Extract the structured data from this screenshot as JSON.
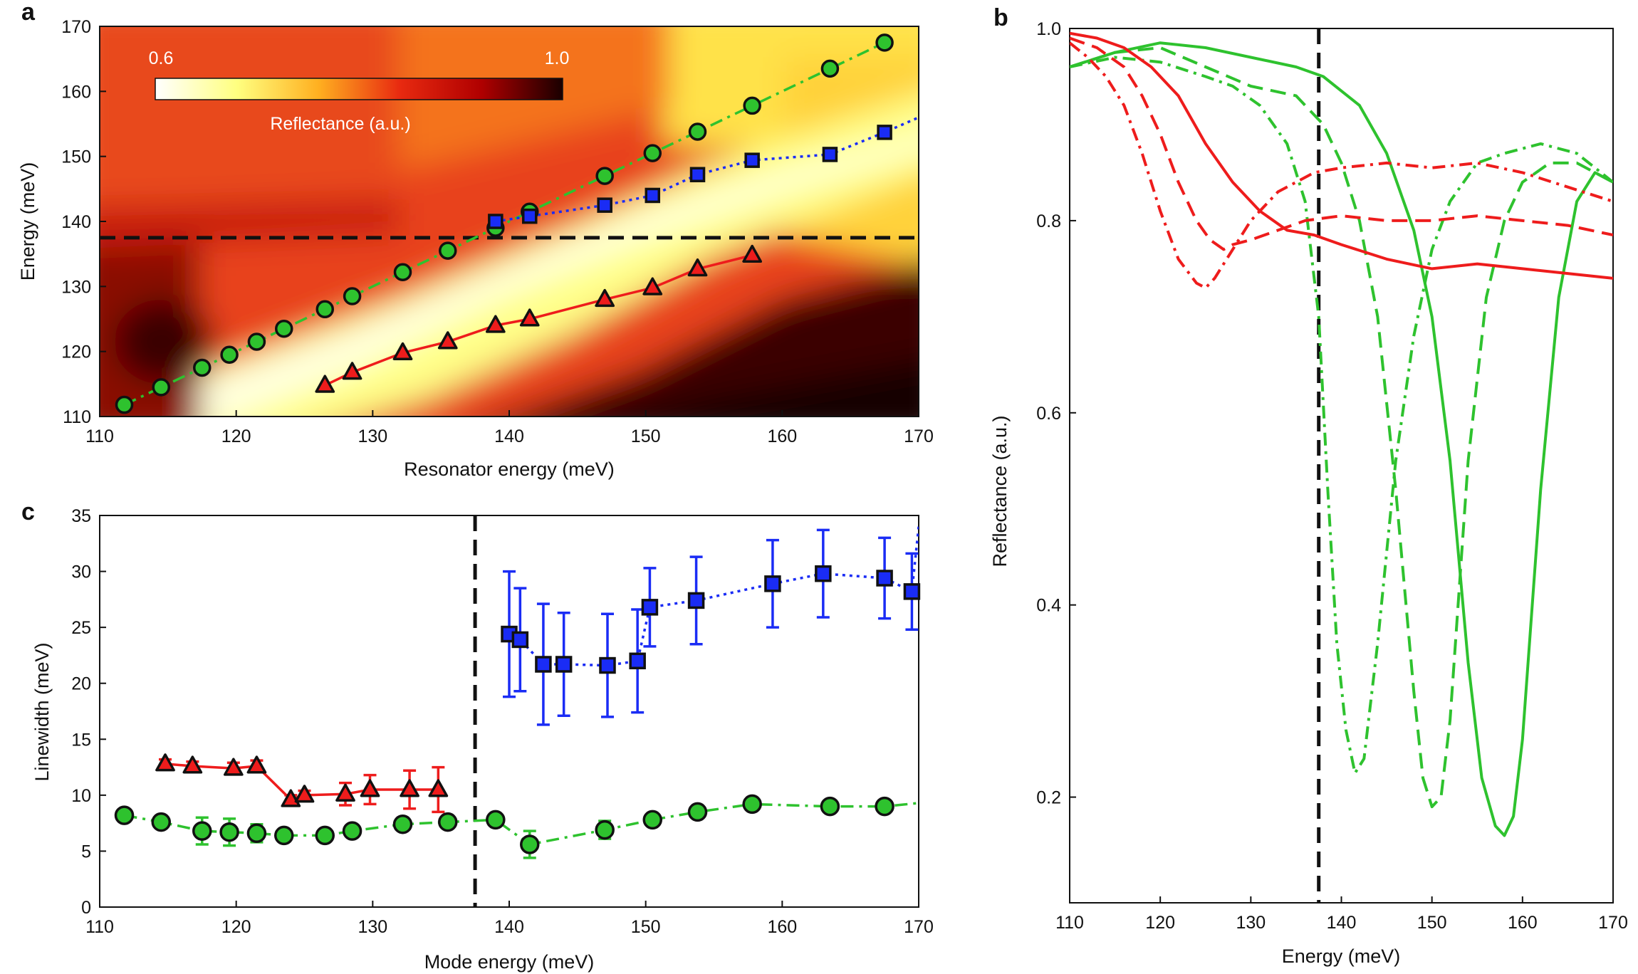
{
  "figure": {
    "panel_letters": [
      "a",
      "b",
      "c"
    ]
  },
  "chart_data": [
    {
      "panel": "a",
      "type": "heatmap",
      "xlabel": "Resonator energy (meV)",
      "ylabel": "Energy (meV)",
      "xlim": [
        110,
        170
      ],
      "ylim": [
        110,
        170
      ],
      "xticks": [
        110,
        120,
        130,
        140,
        150,
        160,
        170
      ],
      "yticks": [
        110,
        120,
        130,
        140,
        150,
        160,
        170
      ],
      "colorbar": {
        "label": "Reflectance (a.u.)",
        "min_label": "0.6",
        "max_label": "1.0",
        "colors": [
          "#ffffff",
          "#ffff80",
          "#ffb020",
          "#e82a10",
          "#b00000",
          "#1a0000"
        ]
      },
      "reference_line_y": 137.5,
      "series": [
        {
          "name": "green",
          "color": "#2ec22e",
          "marker": "circle",
          "line": "dashdot",
          "x": [
            111.8,
            114.5,
            117.5,
            119.5,
            121.5,
            123.5,
            126.5,
            128.5,
            132.2,
            135.5,
            139.0,
            141.5,
            147.0,
            150.5,
            153.8,
            157.8,
            163.5,
            167.5
          ],
          "y": [
            111.8,
            114.5,
            117.5,
            119.5,
            121.5,
            123.5,
            126.5,
            128.5,
            132.2,
            135.5,
            139.0,
            141.5,
            147.0,
            150.5,
            153.8,
            157.8,
            163.5,
            167.5
          ]
        },
        {
          "name": "blue",
          "color": "#1a2cf5",
          "marker": "square",
          "line": "dotted",
          "x": [
            139.0,
            141.5,
            147.0,
            150.5,
            153.8,
            157.8,
            163.5,
            167.5,
            170
          ],
          "y": [
            140.0,
            140.8,
            142.5,
            144.0,
            147.2,
            149.4,
            150.3,
            153.7,
            156
          ]
        },
        {
          "name": "red",
          "color": "#ee1c1c",
          "marker": "triangle",
          "line": "solid",
          "x": [
            126.5,
            128.5,
            132.2,
            135.5,
            139.0,
            141.5,
            147.0,
            150.5,
            153.8,
            157.8
          ],
          "y": [
            114.8,
            116.8,
            119.8,
            121.5,
            124.0,
            125.0,
            128.0,
            129.8,
            132.7,
            134.8
          ]
        }
      ]
    },
    {
      "panel": "b",
      "type": "line",
      "xlabel": "Energy (meV)",
      "ylabel": "Reflectance (a.u.)",
      "xlim": [
        110,
        170
      ],
      "ylim": [
        0.09,
        1.0
      ],
      "xticks": [
        110,
        120,
        130,
        140,
        150,
        160,
        170
      ],
      "yticks": [
        0.2,
        0.4,
        0.6,
        0.8,
        1.0
      ],
      "ytick_labels": [
        "0.2",
        "0.4",
        "0.6",
        "0.8",
        "1.0"
      ],
      "reference_line_x": 137.5,
      "series": [
        {
          "name": "green solid",
          "color": "#2ec22e",
          "dash": "solid",
          "x": [
            110,
            115,
            120,
            125,
            130,
            135,
            138,
            142,
            145,
            148,
            150,
            152,
            154,
            155.5,
            157,
            158,
            159,
            160,
            162,
            164,
            166,
            168,
            170
          ],
          "y": [
            0.96,
            0.975,
            0.985,
            0.98,
            0.97,
            0.96,
            0.95,
            0.92,
            0.87,
            0.79,
            0.7,
            0.55,
            0.34,
            0.22,
            0.17,
            0.16,
            0.18,
            0.26,
            0.52,
            0.72,
            0.82,
            0.85,
            0.84
          ]
        },
        {
          "name": "green dashed",
          "color": "#2ec22e",
          "dash": "dashed",
          "x": [
            110,
            115,
            120,
            125,
            130,
            135,
            138,
            140,
            142,
            144,
            146,
            148,
            149,
            150,
            151,
            152,
            154,
            156,
            158,
            160,
            163,
            166,
            168,
            170
          ],
          "y": [
            0.96,
            0.975,
            0.98,
            0.96,
            0.94,
            0.93,
            0.9,
            0.86,
            0.8,
            0.7,
            0.52,
            0.31,
            0.22,
            0.19,
            0.2,
            0.28,
            0.55,
            0.72,
            0.8,
            0.84,
            0.86,
            0.86,
            0.85,
            0.84
          ]
        },
        {
          "name": "green dashdot",
          "color": "#2ec22e",
          "dash": "dashdot",
          "x": [
            110,
            115,
            120,
            125,
            128,
            131,
            134,
            136,
            137.5,
            138.5,
            139.5,
            140.5,
            141.5,
            142.5,
            144,
            146,
            148,
            150,
            152,
            155,
            158,
            162,
            166,
            170
          ],
          "y": [
            0.96,
            0.97,
            0.965,
            0.95,
            0.94,
            0.92,
            0.88,
            0.82,
            0.7,
            0.52,
            0.36,
            0.27,
            0.225,
            0.24,
            0.36,
            0.55,
            0.68,
            0.77,
            0.82,
            0.86,
            0.87,
            0.88,
            0.87,
            0.84
          ]
        },
        {
          "name": "red solid",
          "color": "#ee1c1c",
          "dash": "solid",
          "x": [
            110,
            113,
            116,
            119,
            122,
            125,
            128,
            131,
            134,
            137,
            140,
            145,
            150,
            155,
            160,
            165,
            170
          ],
          "y": [
            0.995,
            0.99,
            0.98,
            0.96,
            0.93,
            0.88,
            0.84,
            0.81,
            0.79,
            0.785,
            0.775,
            0.76,
            0.75,
            0.755,
            0.75,
            0.745,
            0.74
          ]
        },
        {
          "name": "red dashed",
          "color": "#ee1c1c",
          "dash": "dashed",
          "x": [
            110,
            113,
            116,
            118,
            120,
            122,
            124,
            125.5,
            127,
            128,
            130,
            133,
            136,
            140,
            145,
            150,
            155,
            160,
            165,
            170
          ],
          "y": [
            0.99,
            0.98,
            0.96,
            0.93,
            0.89,
            0.84,
            0.8,
            0.78,
            0.77,
            0.775,
            0.78,
            0.79,
            0.8,
            0.805,
            0.8,
            0.8,
            0.805,
            0.8,
            0.795,
            0.785
          ]
        },
        {
          "name": "red dashdot",
          "color": "#ee1c1c",
          "dash": "dashdot",
          "x": [
            110,
            112,
            114,
            116,
            118,
            120,
            122,
            124,
            125,
            126,
            128,
            130,
            133,
            137,
            140,
            145,
            150,
            155,
            160,
            165,
            170
          ],
          "y": [
            0.985,
            0.97,
            0.95,
            0.92,
            0.87,
            0.81,
            0.76,
            0.735,
            0.73,
            0.74,
            0.77,
            0.8,
            0.83,
            0.85,
            0.855,
            0.86,
            0.855,
            0.86,
            0.85,
            0.835,
            0.82
          ]
        }
      ]
    },
    {
      "panel": "c",
      "type": "line",
      "xlabel": "Mode energy (meV)",
      "ylabel": "Linewidth (meV)",
      "xlim": [
        110,
        170
      ],
      "ylim": [
        0,
        35
      ],
      "xticks": [
        110,
        120,
        130,
        140,
        150,
        160,
        170
      ],
      "yticks": [
        0,
        5,
        10,
        15,
        20,
        25,
        30,
        35
      ],
      "reference_line_x": 137.5,
      "series": [
        {
          "name": "green",
          "color": "#2ec22e",
          "marker": "circle",
          "line": "dashdot",
          "x": [
            111.8,
            114.5,
            117.5,
            119.5,
            121.5,
            123.5,
            126.5,
            128.5,
            132.2,
            135.5,
            139.0,
            141.5,
            147.0,
            150.5,
            153.8,
            157.8,
            163.5,
            167.5,
            170
          ],
          "y": [
            8.2,
            7.6,
            6.8,
            6.7,
            6.6,
            6.4,
            6.4,
            6.8,
            7.4,
            7.6,
            7.8,
            5.6,
            6.9,
            7.8,
            8.5,
            9.2,
            9.0,
            9.0,
            9.3
          ],
          "err": [
            0.3,
            0.4,
            1.2,
            1.2,
            0.8,
            0.4,
            0.4,
            0.5,
            0.4,
            0.3,
            0.3,
            1.2,
            0.8,
            0.4,
            0.4,
            0.4,
            0.3,
            0.3,
            0
          ]
        },
        {
          "name": "red",
          "color": "#ee1c1c",
          "marker": "triangle",
          "line": "solid",
          "x": [
            114.8,
            116.8,
            119.8,
            121.5,
            124.0,
            125.0,
            128.0,
            129.8,
            132.7,
            134.8
          ],
          "y": [
            12.8,
            12.6,
            12.4,
            12.6,
            9.6,
            10.0,
            10.1,
            10.5,
            10.5,
            10.5
          ],
          "err": [
            0.4,
            0.4,
            0.5,
            0.5,
            0.4,
            0.4,
            1.0,
            1.3,
            1.7,
            2.0
          ]
        },
        {
          "name": "blue",
          "color": "#1a2cf5",
          "marker": "square",
          "line": "dotted",
          "x": [
            140.0,
            140.8,
            142.5,
            144.0,
            147.2,
            149.4,
            150.3,
            153.7,
            159.3,
            163.0,
            167.5,
            169.5,
            170
          ],
          "y": [
            24.4,
            23.9,
            21.7,
            21.7,
            21.6,
            22.0,
            26.8,
            27.4,
            28.9,
            29.8,
            29.4,
            28.2,
            34.0
          ],
          "err": [
            5.6,
            4.6,
            5.4,
            4.6,
            4.6,
            4.6,
            3.5,
            3.9,
            3.9,
            3.9,
            3.6,
            3.4,
            0
          ]
        }
      ]
    }
  ]
}
